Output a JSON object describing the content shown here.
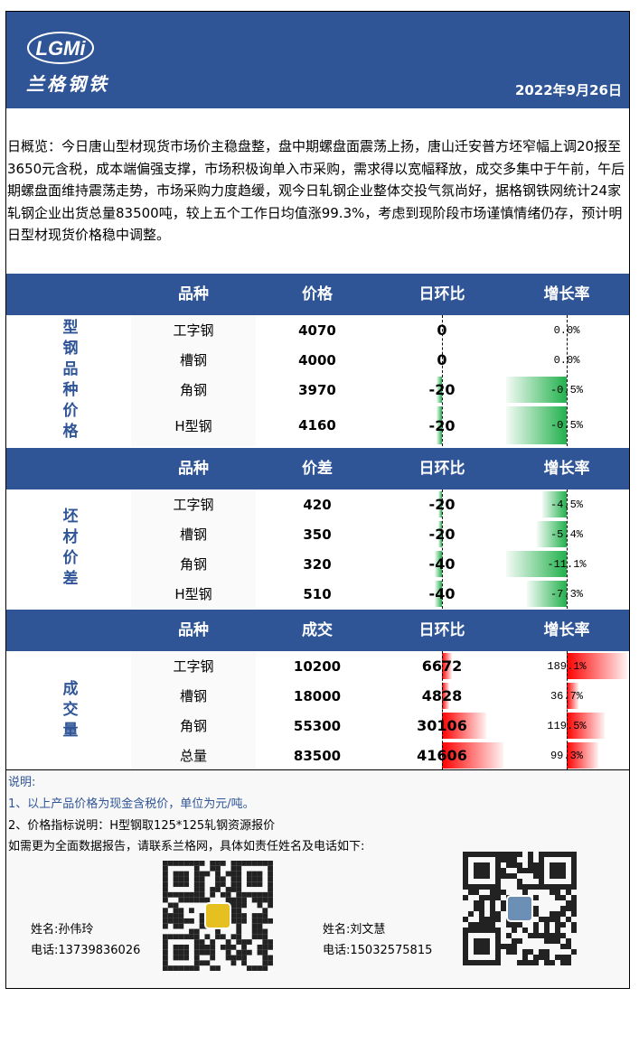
{
  "header": {
    "logo": "LGMi",
    "brand": "兰格钢铁",
    "date": "2022年9月26日"
  },
  "summary": "日概览：今日唐山型材现货市场价主稳盘整，盘中期螺盘面震荡上扬，唐山迁安普方坯窄幅上调20报至3650元含税，成本端偏强支撑，市场积极询单入市采购，需求得以宽幅释放，成交多集中于午前，午后期螺盘面维持震荡走势，市场采购力度趋缓，观今日轧钢企业整体交投气氛尚好，据格钢铁网统计24家轧钢企业出货总量83500吨，较上五个工作日均值涨99.3%，考虑到现阶段市场谨慎情绪仍存，预计明日型材现货价格稳中调整。",
  "sections": [
    {
      "label": "型钢品种价格",
      "columns": [
        "品种",
        "价格",
        "日环比",
        "增长率"
      ],
      "rows": [
        {
          "name": "工字钢",
          "value": 4070,
          "change": 0,
          "growth": 0.0,
          "growth_label": "0.0%"
        },
        {
          "name": "槽钢",
          "value": 4000,
          "change": 0,
          "growth": 0.0,
          "growth_label": "0.0%"
        },
        {
          "name": "角钢",
          "value": 3970,
          "change": -20,
          "growth": -0.5,
          "growth_label": "-0.5%"
        },
        {
          "name": "H型钢",
          "value": 4160,
          "change": -20,
          "growth": -0.5,
          "growth_label": "-0.5%"
        }
      ]
    },
    {
      "label": "坯材价差",
      "columns": [
        "品种",
        "价差",
        "日环比",
        "增长率"
      ],
      "rows": [
        {
          "name": "工字钢",
          "value": 420,
          "change": -20,
          "growth": -4.5,
          "growth_label": "-4.5%"
        },
        {
          "name": "槽钢",
          "value": 350,
          "change": -20,
          "growth": -5.4,
          "growth_label": "-5.4%"
        },
        {
          "name": "角钢",
          "value": 320,
          "change": -40,
          "growth": -11.1,
          "growth_label": "-11.1%"
        },
        {
          "name": "H型钢",
          "value": 510,
          "change": -40,
          "growth": -7.3,
          "growth_label": "-7.3%"
        }
      ]
    },
    {
      "label": "成交量",
      "columns": [
        "品种",
        "成交",
        "日环比",
        "增长率"
      ],
      "rows": [
        {
          "name": "工字钢",
          "value": 10200,
          "change": 6672,
          "growth": 189.1,
          "growth_label": "189.1%"
        },
        {
          "name": "槽钢",
          "value": 18000,
          "change": 4828,
          "growth": 36.7,
          "growth_label": "36.7%"
        },
        {
          "name": "角钢",
          "value": 55300,
          "change": 30106,
          "growth": 119.5,
          "growth_label": "119.5%"
        },
        {
          "name": "总量",
          "value": 83500,
          "change": 41606,
          "growth": 99.3,
          "growth_label": "99.3%"
        }
      ]
    }
  ],
  "notes": {
    "title": "说明:",
    "lines": [
      "1、以上产品价格为现金含税价，单位为元/吨。",
      "2、价格指标说明：H型钢取125*125轧钢资源报价",
      "如需更为全面数据报告，请联系兰格网，具体如责任姓名及电话如下:"
    ]
  },
  "contacts": [
    {
      "name": "姓名:孙伟玲",
      "phone": "电话:13739836026"
    },
    {
      "name": "姓名:刘文慧",
      "phone": "电话:15032575815"
    }
  ]
}
